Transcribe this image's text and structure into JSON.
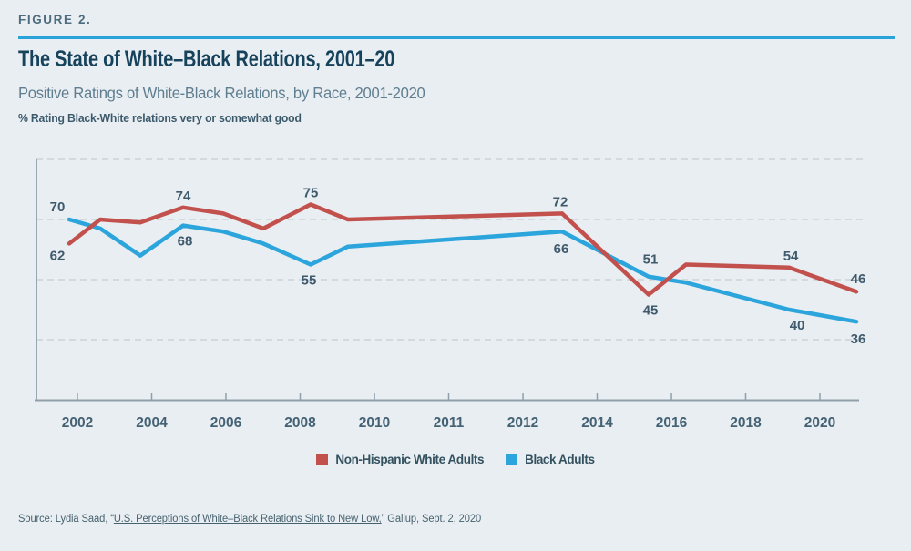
{
  "figure": {
    "kicker": "FIGURE 2.",
    "title": "The State of White–Black Relations, 2001–20",
    "subtitle": "Positive Ratings of White-Black Relations, by Race, 2001-2020",
    "measure_note": "% Rating Black-White relations very or somewhat good"
  },
  "source": {
    "prefix": "Source: Lydia Saad, “",
    "link_text": "U.S. Perceptions of White–Black Relations Sink to New Low,",
    "suffix": "” Gallup, Sept. 2, 2020"
  },
  "legend": {
    "items": [
      {
        "label": "Non-Hispanic White Adults",
        "color": "#c2514d"
      },
      {
        "label": "Black Adults",
        "color": "#2ca4dc"
      }
    ]
  },
  "colors": {
    "background": "#e9eef2",
    "accent_rule": "#2aa2da",
    "title": "#16425c",
    "kicker": "#4d6c7e",
    "subtitle": "#5f7e90",
    "grid": "#c4cdd3",
    "axis": "#8fa0aa",
    "tick_label": "#446274",
    "point_label": "#3e5a6c",
    "white_series": "#c2514d",
    "black_series": "#2ca4dc"
  },
  "chart_data": {
    "type": "line",
    "title": "Positive Ratings of White-Black Relations, by Race, 2001-2020",
    "ylabel": "% Rating Black-White relations very or somewhat good",
    "xlabel": "",
    "ylim": [
      10,
      90
    ],
    "gridline_values": [
      90,
      70,
      50,
      30
    ],
    "grid_style": "dashed-horizontal",
    "legend_position": "bottom-center",
    "x_ticks": [
      {
        "label": "2002",
        "xf": 0.0498
      },
      {
        "label": "2004",
        "xf": 0.1401
      },
      {
        "label": "2006",
        "xf": 0.2303
      },
      {
        "label": "2008",
        "xf": 0.3206
      },
      {
        "label": "2010",
        "xf": 0.4109
      },
      {
        "label": "2011",
        "xf": 0.5011
      },
      {
        "label": "2012",
        "xf": 0.5914
      },
      {
        "label": "2014",
        "xf": 0.6816
      },
      {
        "label": "2016",
        "xf": 0.7719
      },
      {
        "label": "2018",
        "xf": 0.8621
      },
      {
        "label": "2020",
        "xf": 0.9524
      }
    ],
    "series": [
      {
        "name": "Non-Hispanic White Adults",
        "color": "#c2514d",
        "points": [
          {
            "year": 2001,
            "value": 62,
            "xf": 0.0399,
            "label": {
              "dx": -13,
              "dy": 18
            }
          },
          {
            "year": 2002,
            "value": 70,
            "xf": 0.0775
          },
          {
            "year": 2003,
            "value": 69,
            "xf": 0.1262
          },
          {
            "year": 2005,
            "value": 74,
            "xf": 0.1783,
            "label": {
              "dx": 0,
              "dy": -8
            }
          },
          {
            "year": 2006,
            "value": 72,
            "xf": 0.227
          },
          {
            "year": 2007,
            "value": 67,
            "xf": 0.2757
          },
          {
            "year": 2008,
            "value": 75,
            "xf": 0.3333,
            "label": {
              "dx": 0,
              "dy": -8
            }
          },
          {
            "year": 2009,
            "value": 70,
            "xf": 0.3787
          },
          {
            "year": 2013,
            "value": 72,
            "xf": 0.639,
            "label": {
              "dx": -2,
              "dy": -8
            }
          },
          {
            "year": 2015,
            "value": 45,
            "xf": 0.7442,
            "label": {
              "dx": 2,
              "dy": 22
            }
          },
          {
            "year": 2016,
            "value": 55,
            "xf": 0.7896
          },
          {
            "year": 2019,
            "value": 54,
            "xf": 0.9148,
            "label": {
              "dx": 2,
              "dy": -8
            }
          },
          {
            "year": 2020,
            "value": 46,
            "xf": 0.9967,
            "label": {
              "dx": 2,
              "dy": -9
            }
          }
        ]
      },
      {
        "name": "Black Adults",
        "color": "#2ca4dc",
        "points": [
          {
            "year": 2001,
            "value": 70,
            "xf": 0.0399,
            "label": {
              "dx": -13,
              "dy": -9
            }
          },
          {
            "year": 2002,
            "value": 67,
            "xf": 0.0775
          },
          {
            "year": 2003,
            "value": 58,
            "xf": 0.1262
          },
          {
            "year": 2005,
            "value": 68,
            "xf": 0.1783,
            "label": {
              "dx": 2,
              "dy": 22
            }
          },
          {
            "year": 2006,
            "value": 66,
            "xf": 0.227
          },
          {
            "year": 2007,
            "value": 62,
            "xf": 0.2757
          },
          {
            "year": 2008,
            "value": 55,
            "xf": 0.3333,
            "label": {
              "dx": -2,
              "dy": 22
            }
          },
          {
            "year": 2009,
            "value": 61,
            "xf": 0.3787
          },
          {
            "year": 2013,
            "value": 66,
            "xf": 0.639,
            "label": {
              "dx": -1,
              "dy": 24
            }
          },
          {
            "year": 2015,
            "value": 51,
            "xf": 0.7442,
            "label": {
              "dx": 2,
              "dy": -14
            }
          },
          {
            "year": 2016,
            "value": 49,
            "xf": 0.7896
          },
          {
            "year": 2019,
            "value": 40,
            "xf": 0.9148,
            "label": {
              "dx": 9,
              "dy": 22
            }
          },
          {
            "year": 2020,
            "value": 36,
            "xf": 0.9967,
            "label": {
              "dx": 2,
              "dy": 24
            }
          }
        ]
      }
    ]
  }
}
